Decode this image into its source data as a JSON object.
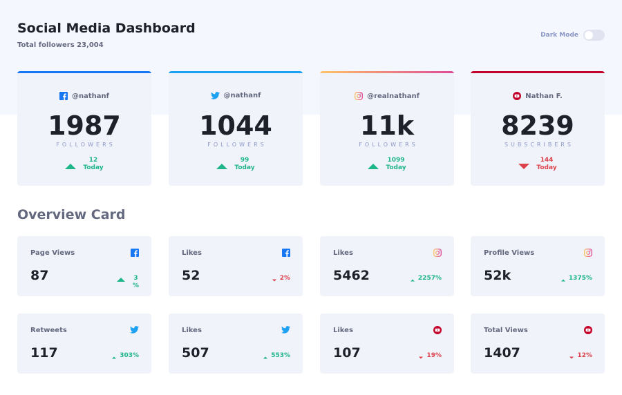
{
  "header": {
    "title": "Social Media Dashboard",
    "subtitle": "Total followers 23,004",
    "dark_mode_label": "Dark Mode"
  },
  "colors": {
    "facebook": "#1877f2",
    "twitter": "#1da1f2",
    "instagram_start": "#fdc468",
    "instagram_end": "#df4996",
    "youtube": "#c4032a",
    "up": "#1eb589",
    "down": "#dc414c"
  },
  "cards": [
    {
      "platform": "facebook",
      "icon": "facebook-icon",
      "handle": "@nathanf",
      "count": "1987",
      "unit": "FOLLOWERS",
      "change": "12",
      "period": "Today",
      "trend": "up"
    },
    {
      "platform": "twitter",
      "icon": "twitter-icon",
      "handle": "@nathanf",
      "count": "1044",
      "unit": "FOLLOWERS",
      "change": "99",
      "period": "Today",
      "trend": "up"
    },
    {
      "platform": "instagram",
      "icon": "instagram-icon",
      "handle": "@realnathanf",
      "count": "11k",
      "unit": "FOLLOWERS",
      "change": "1099",
      "period": "Today",
      "trend": "up"
    },
    {
      "platform": "youtube",
      "icon": "youtube-icon",
      "handle": "Nathan F.",
      "count": "8239",
      "unit": "SUBSCRIBERS",
      "change": "144",
      "period": "Today",
      "trend": "down"
    }
  ],
  "overview": {
    "title": "Overview Card",
    "items": [
      {
        "label": "Page Views",
        "icon": "facebook-icon",
        "value": "87",
        "change_line1": "3",
        "change_line2": "%",
        "trend": "up"
      },
      {
        "label": "Likes",
        "icon": "facebook-icon",
        "value": "52",
        "change_line1": "2%",
        "change_line2": "",
        "trend": "down"
      },
      {
        "label": "Likes",
        "icon": "instagram-icon",
        "value": "5462",
        "change_line1": "2257%",
        "change_line2": "",
        "trend": "up"
      },
      {
        "label": "Profile Views",
        "icon": "instagram-icon",
        "value": "52k",
        "change_line1": "1375%",
        "change_line2": "",
        "trend": "up"
      },
      {
        "label": "Retweets",
        "icon": "twitter-icon",
        "value": "117",
        "change_line1": "303%",
        "change_line2": "",
        "trend": "up"
      },
      {
        "label": "Likes",
        "icon": "twitter-icon",
        "value": "507",
        "change_line1": "553%",
        "change_line2": "",
        "trend": "up"
      },
      {
        "label": "Likes",
        "icon": "youtube-icon",
        "value": "107",
        "change_line1": "19%",
        "change_line2": "",
        "trend": "down"
      },
      {
        "label": "Total Views",
        "icon": "youtube-icon",
        "value": "1407",
        "change_line1": "12%",
        "change_line2": "",
        "trend": "down"
      }
    ]
  }
}
